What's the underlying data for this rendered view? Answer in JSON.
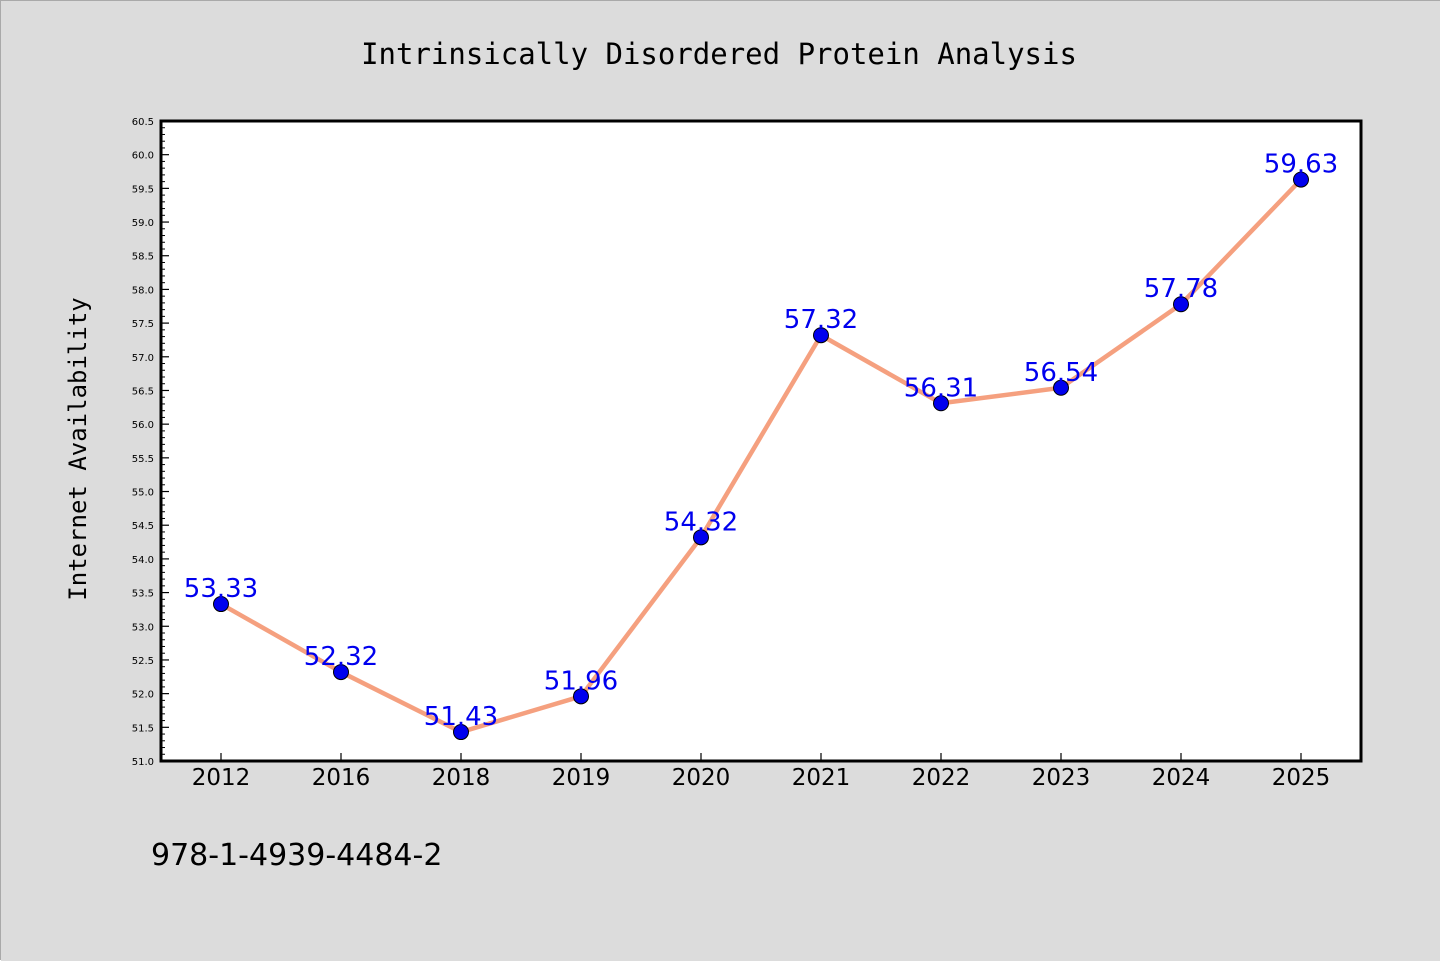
{
  "colors": {
    "figure_background": "#dcdcdc",
    "plot_background": "#ffffff",
    "line": "#f5a07f",
    "marker": "#0000ee",
    "data_label": "#0000ee"
  },
  "chart_data": {
    "type": "line",
    "title": "Intrinsically Disordered Protein Analysis",
    "xlabel": "",
    "ylabel": "Internet Availability",
    "categories": [
      "2012",
      "2016",
      "2018",
      "2019",
      "2020",
      "2021",
      "2022",
      "2023",
      "2024",
      "2025"
    ],
    "series": [
      {
        "values": [
          53.33,
          52.32,
          51.43,
          51.96,
          54.32,
          57.32,
          56.31,
          56.54,
          57.78,
          59.63
        ]
      }
    ],
    "data_labels": [
      "53.33",
      "52.32",
      "51.43",
      "51.96",
      "54.32",
      "57.32",
      "56.31",
      "56.54",
      "57.78",
      "59.63"
    ],
    "ylim": [
      51.0,
      60.5
    ],
    "yticks": [
      "51.0",
      "51.5",
      "52.0",
      "52.5",
      "53.0",
      "53.5",
      "54.0",
      "54.5",
      "55.0",
      "55.5",
      "56.0",
      "56.5",
      "57.0",
      "57.5",
      "58.0",
      "58.5",
      "59.0",
      "59.5",
      "60.0",
      "60.5"
    ],
    "grid": false,
    "legend": "none"
  },
  "footer": {
    "isbn": "978-1-4939-4484-2"
  }
}
